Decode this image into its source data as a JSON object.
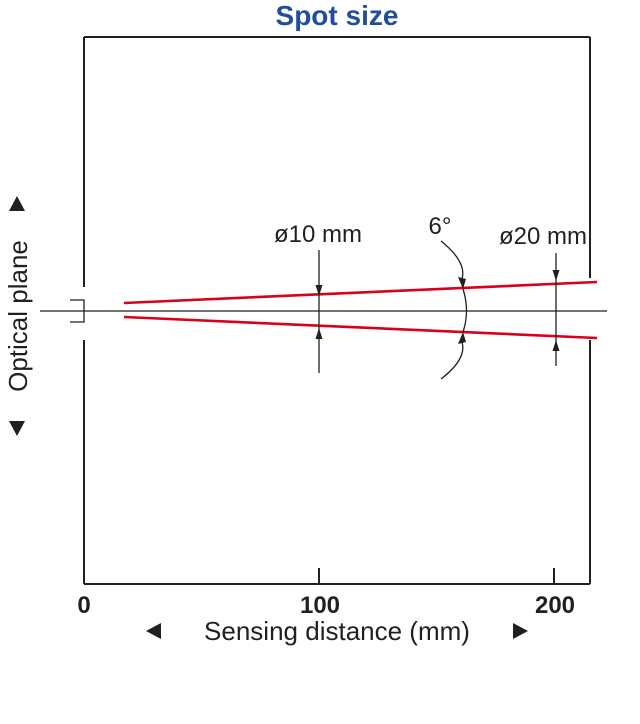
{
  "title": "Spot size",
  "x_axis": {
    "label": "Sensing distance (mm)",
    "ticks": [
      "0",
      "100",
      "200"
    ]
  },
  "y_axis": {
    "label": "Optical plane"
  },
  "annotations": {
    "spot_near": "ø10 mm",
    "spot_far": "ø20 mm",
    "beam_angle": "6°"
  },
  "colors": {
    "title": "#1f4e9c",
    "beam": "#d9001b",
    "line": "#231f20"
  }
}
